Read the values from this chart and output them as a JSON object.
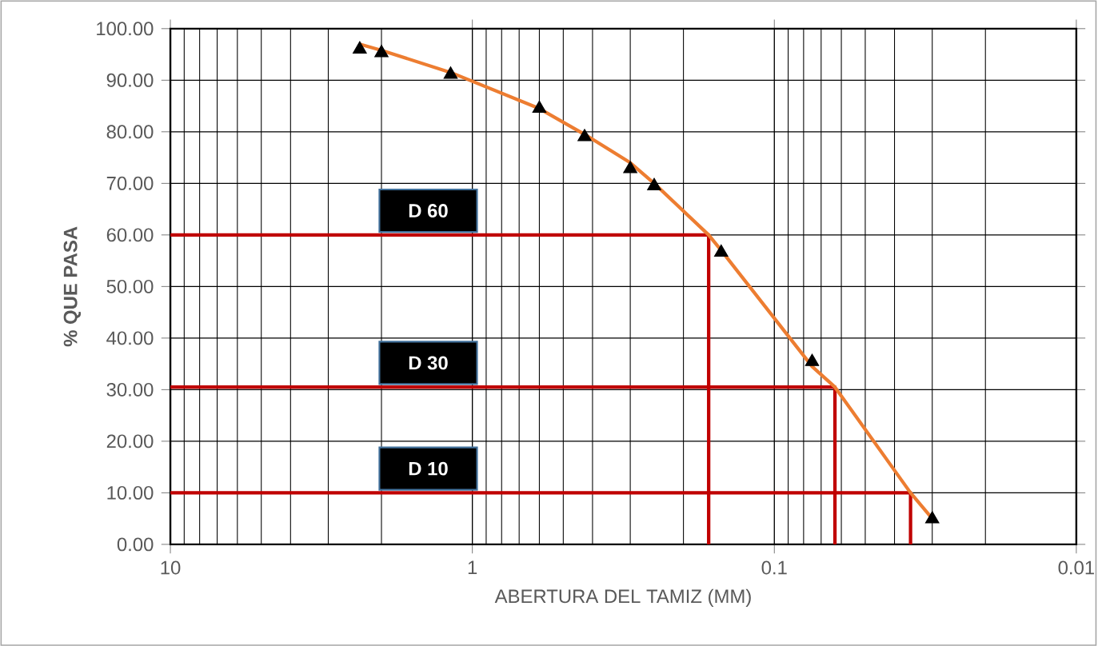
{
  "chart_data": {
    "type": "scatter",
    "xlabel": "ABERTURA DEL TAMIZ (MM)",
    "ylabel": "% QUE PASA",
    "log": "x",
    "grid": true,
    "xlim": [
      10,
      0.01
    ],
    "xticks": [
      10,
      1,
      0.1,
      0.01
    ],
    "ylim": [
      0,
      100
    ],
    "yticks": [
      {
        "value": 0,
        "label": "0.00"
      },
      {
        "value": 10,
        "label": "10.00"
      },
      {
        "value": 20,
        "label": "20.00"
      },
      {
        "value": 30,
        "label": "30.00"
      },
      {
        "value": 40,
        "label": "40.00"
      },
      {
        "value": 50,
        "label": "50.00"
      },
      {
        "value": 60,
        "label": "60.00"
      },
      {
        "value": 70,
        "label": "70.00"
      },
      {
        "value": 80,
        "label": "80.00"
      },
      {
        "value": 90,
        "label": "90.00"
      },
      {
        "value": 100,
        "label": "100.00"
      }
    ],
    "series": [
      {
        "type": "line",
        "color": "#c00000",
        "marker": "none",
        "x": [
          10,
          0.165,
          0.165
        ],
        "values": [
          60,
          60,
          0
        ]
      },
      {
        "type": "line",
        "color": "#c00000",
        "marker": "none",
        "x": [
          10,
          0.063,
          0.063
        ],
        "values": [
          30.5,
          30.5,
          0
        ]
      },
      {
        "type": "line",
        "color": "#c00000",
        "marker": "none",
        "x": [
          10,
          0.0354,
          0.0354
        ],
        "values": [
          10,
          10,
          0
        ]
      },
      {
        "type": "line",
        "color": "#ed7d31",
        "marker": "none",
        "x": [
          2.36,
          2.0,
          1.18,
          0.6,
          0.425,
          0.3,
          0.25,
          0.165,
          0.15,
          0.075,
          0.063,
          0.0354,
          0.03
        ],
        "values": [
          97,
          95.8,
          91.5,
          84.5,
          79.5,
          74,
          70,
          60,
          57,
          34.5,
          30.5,
          10,
          5
        ]
      },
      {
        "color": "#000000",
        "marker": "triangle",
        "x": [
          2.36,
          2.0,
          1.18,
          0.6,
          0.425,
          0.3,
          0.25,
          0.15,
          0.075,
          0.03
        ],
        "values": [
          96,
          95.3,
          91.1,
          84.5,
          79,
          72.8,
          69.5,
          56.6,
          35.4,
          4.9
        ]
      }
    ],
    "annotations": [
      "D 60",
      "D 30",
      "D 10"
    ]
  }
}
